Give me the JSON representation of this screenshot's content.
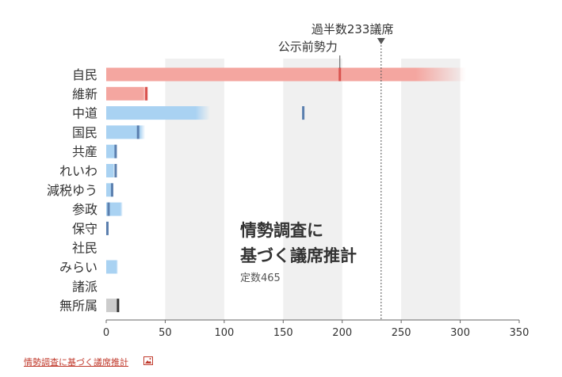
{
  "chart_data": {
    "type": "bar",
    "title": "情勢調査に\n基づく議席推計",
    "subtitle": "定数465",
    "xlim": [
      0,
      350
    ],
    "xticks": [
      0,
      50,
      100,
      150,
      200,
      250,
      300,
      350
    ],
    "bands": [
      [
        50,
        100
      ],
      [
        150,
        200
      ],
      [
        250,
        300
      ]
    ],
    "majority": {
      "value": 233,
      "label": "過半数233議席"
    },
    "marker_legend": "公示前勢力",
    "categories": [
      "自民",
      "維新",
      "中道",
      "国民",
      "共産",
      "れいわ",
      "減税ゆう",
      "参政",
      "保守",
      "社民",
      "みらい",
      "諸派",
      "無所属"
    ],
    "estimate_range": [
      [
        0,
        305
      ],
      [
        0,
        36
      ],
      [
        0,
        88
      ],
      [
        0,
        33
      ],
      [
        0,
        9
      ],
      [
        0,
        7
      ],
      [
        0,
        5
      ],
      [
        0,
        14
      ],
      [
        0,
        2
      ],
      [
        0,
        0
      ],
      [
        0,
        10
      ],
      [
        0,
        0
      ],
      [
        0,
        10
      ]
    ],
    "pre_election_seats": [
      198,
      34,
      167,
      27,
      8,
      8,
      5,
      2,
      1,
      0,
      0,
      0,
      10
    ],
    "colors": {
      "自民": "#f4a6a0",
      "維新": "#f4a6a0",
      "default": "#a9d2f2",
      "無所属": "#cccccc",
      "marker": "#5b7fae",
      "marker_ldp": "#d9534f",
      "marker_ishin": "#d9534f",
      "marker_ind": "#333333",
      "band": "#f0f0f0"
    }
  },
  "caption_link": "情勢調査に基づく議席推計",
  "caption_icon": "image-icon"
}
